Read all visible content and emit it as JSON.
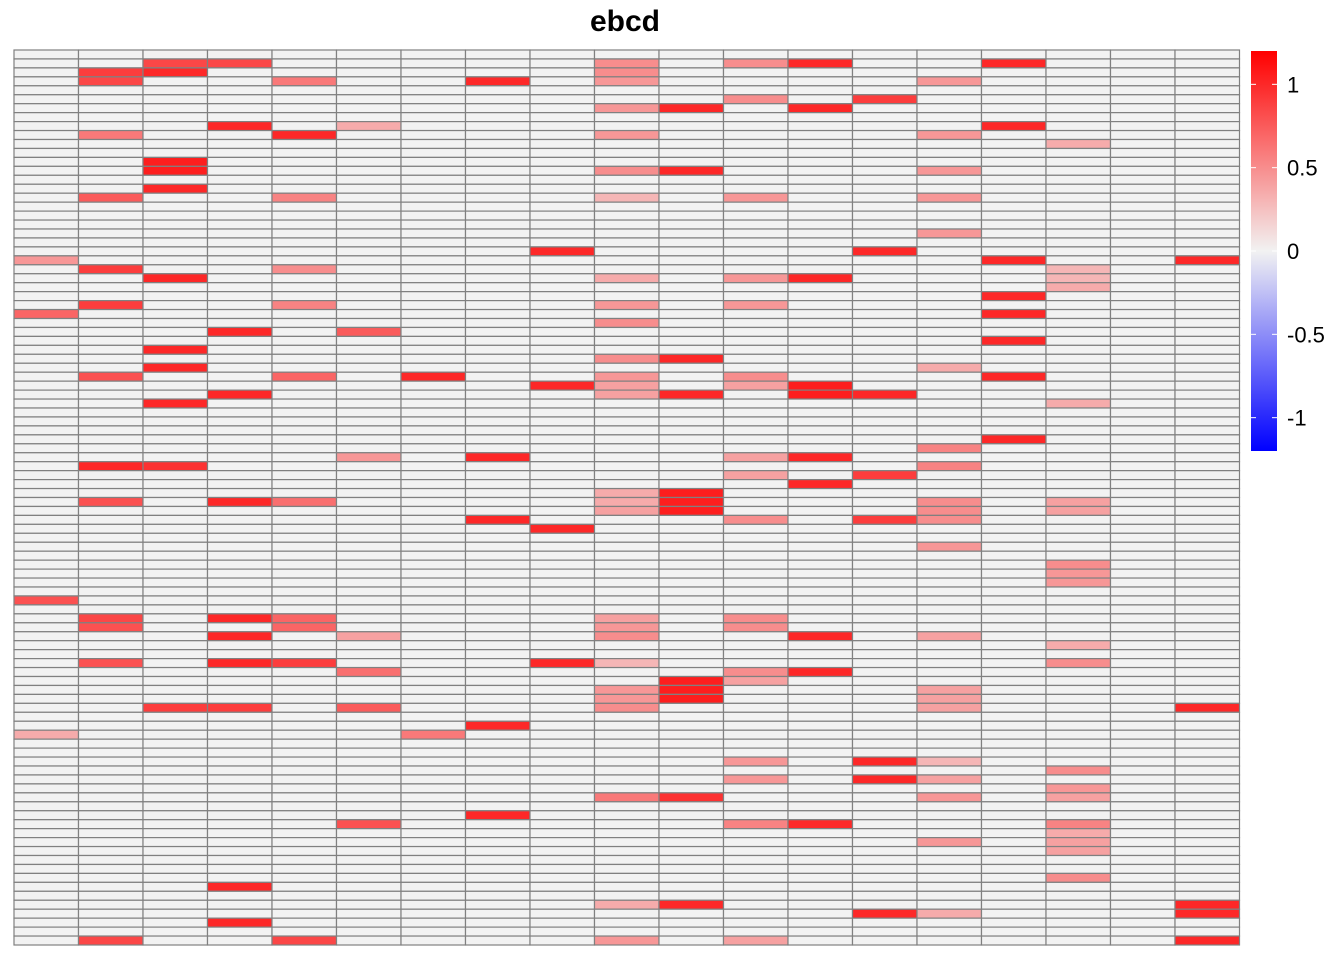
{
  "chart_data": {
    "type": "heatmap",
    "title": "ebcd",
    "n_rows": 100,
    "n_cols": 19,
    "color_scale": {
      "low": "#0000FF",
      "mid": "#F2F2F2",
      "high": "#FF0000",
      "range": [
        -1.2,
        1.2
      ],
      "ticks": [
        1,
        0.5,
        0,
        -0.5,
        -1
      ],
      "tick_labels": [
        "1",
        "0.5",
        "0",
        "-0.5",
        "-1"
      ]
    },
    "cell_border_color": "#808080",
    "cells": [
      [
        1,
        2,
        0.85
      ],
      [
        1,
        3,
        0.85
      ],
      [
        2,
        2,
        1.0
      ],
      [
        23,
        0,
        0.45
      ],
      [
        29,
        0,
        0.7
      ],
      [
        61,
        0,
        0.8
      ],
      [
        76,
        0,
        0.35
      ],
      [
        2,
        1,
        0.9
      ],
      [
        3,
        1,
        0.85
      ],
      [
        9,
        1,
        0.6
      ],
      [
        16,
        1,
        0.75
      ],
      [
        24,
        1,
        0.9
      ],
      [
        28,
        1,
        0.9
      ],
      [
        36,
        1,
        0.8
      ],
      [
        46,
        1,
        1.0
      ],
      [
        50,
        1,
        0.8
      ],
      [
        63,
        1,
        0.85
      ],
      [
        64,
        1,
        0.8
      ],
      [
        68,
        1,
        0.8
      ],
      [
        99,
        1,
        0.85
      ],
      [
        2,
        2,
        1.0
      ],
      [
        12,
        2,
        1.05
      ],
      [
        13,
        2,
        1.05
      ],
      [
        15,
        2,
        1.0
      ],
      [
        25,
        2,
        1.0
      ],
      [
        33,
        2,
        1.0
      ],
      [
        35,
        2,
        1.0
      ],
      [
        39,
        2,
        1.0
      ],
      [
        46,
        2,
        0.95
      ],
      [
        73,
        2,
        0.9
      ],
      [
        8,
        3,
        1.0
      ],
      [
        31,
        3,
        1.0
      ],
      [
        38,
        3,
        1.0
      ],
      [
        50,
        3,
        1.0
      ],
      [
        63,
        3,
        1.0
      ],
      [
        65,
        3,
        1.0
      ],
      [
        68,
        3,
        1.0
      ],
      [
        73,
        3,
        0.9
      ],
      [
        93,
        3,
        1.0
      ],
      [
        97,
        3,
        1.0
      ],
      [
        3,
        4,
        0.6
      ],
      [
        9,
        4,
        1.0
      ],
      [
        16,
        4,
        0.55
      ],
      [
        24,
        4,
        0.5
      ],
      [
        28,
        4,
        0.55
      ],
      [
        36,
        4,
        0.7
      ],
      [
        50,
        4,
        0.65
      ],
      [
        63,
        4,
        0.7
      ],
      [
        64,
        4,
        0.7
      ],
      [
        68,
        4,
        0.9
      ],
      [
        99,
        4,
        0.85
      ],
      [
        8,
        5,
        0.35
      ],
      [
        31,
        5,
        0.75
      ],
      [
        45,
        5,
        0.45
      ],
      [
        65,
        5,
        0.4
      ],
      [
        69,
        5,
        0.65
      ],
      [
        73,
        5,
        0.75
      ],
      [
        86,
        5,
        0.8
      ],
      [
        36,
        6,
        1.0
      ],
      [
        76,
        6,
        0.6
      ],
      [
        3,
        7,
        1.0
      ],
      [
        45,
        7,
        1.0
      ],
      [
        52,
        7,
        1.0
      ],
      [
        75,
        7,
        1.0
      ],
      [
        85,
        7,
        1.0
      ],
      [
        22,
        8,
        1.0
      ],
      [
        37,
        8,
        1.0
      ],
      [
        53,
        8,
        1.0
      ],
      [
        68,
        8,
        1.0
      ],
      [
        1,
        9,
        0.5
      ],
      [
        2,
        9,
        0.5
      ],
      [
        3,
        9,
        0.45
      ],
      [
        6,
        9,
        0.45
      ],
      [
        9,
        9,
        0.45
      ],
      [
        13,
        9,
        0.5
      ],
      [
        16,
        9,
        0.3
      ],
      [
        25,
        9,
        0.35
      ],
      [
        28,
        9,
        0.45
      ],
      [
        30,
        9,
        0.5
      ],
      [
        34,
        9,
        0.5
      ],
      [
        36,
        9,
        0.45
      ],
      [
        37,
        9,
        0.4
      ],
      [
        38,
        9,
        0.4
      ],
      [
        49,
        9,
        0.35
      ],
      [
        50,
        9,
        0.35
      ],
      [
        51,
        9,
        0.4
      ],
      [
        63,
        9,
        0.4
      ],
      [
        64,
        9,
        0.45
      ],
      [
        65,
        9,
        0.5
      ],
      [
        68,
        9,
        0.3
      ],
      [
        71,
        9,
        0.45
      ],
      [
        72,
        9,
        0.45
      ],
      [
        73,
        9,
        0.5
      ],
      [
        83,
        9,
        0.6
      ],
      [
        95,
        9,
        0.35
      ],
      [
        99,
        9,
        0.45
      ],
      [
        6,
        10,
        1.0
      ],
      [
        13,
        10,
        1.0
      ],
      [
        34,
        10,
        1.0
      ],
      [
        38,
        10,
        1.0
      ],
      [
        49,
        10,
        1.05
      ],
      [
        50,
        10,
        1.05
      ],
      [
        51,
        10,
        1.05
      ],
      [
        70,
        10,
        1.05
      ],
      [
        71,
        10,
        1.05
      ],
      [
        72,
        10,
        1.05
      ],
      [
        83,
        10,
        0.95
      ],
      [
        95,
        10,
        1.0
      ],
      [
        1,
        11,
        0.5
      ],
      [
        5,
        11,
        0.5
      ],
      [
        16,
        11,
        0.45
      ],
      [
        25,
        11,
        0.45
      ],
      [
        28,
        11,
        0.45
      ],
      [
        36,
        11,
        0.5
      ],
      [
        37,
        11,
        0.4
      ],
      [
        45,
        11,
        0.4
      ],
      [
        47,
        11,
        0.4
      ],
      [
        52,
        11,
        0.5
      ],
      [
        63,
        11,
        0.5
      ],
      [
        64,
        11,
        0.5
      ],
      [
        69,
        11,
        0.5
      ],
      [
        70,
        11,
        0.4
      ],
      [
        79,
        11,
        0.45
      ],
      [
        81,
        11,
        0.45
      ],
      [
        86,
        11,
        0.55
      ],
      [
        99,
        11,
        0.4
      ],
      [
        1,
        12,
        1.0
      ],
      [
        6,
        12,
        1.0
      ],
      [
        25,
        12,
        1.0
      ],
      [
        37,
        12,
        1.05
      ],
      [
        38,
        12,
        1.05
      ],
      [
        45,
        12,
        1.0
      ],
      [
        48,
        12,
        1.0
      ],
      [
        65,
        12,
        1.0
      ],
      [
        69,
        12,
        1.0
      ],
      [
        86,
        12,
        1.0
      ],
      [
        5,
        13,
        0.9
      ],
      [
        22,
        13,
        1.0
      ],
      [
        38,
        13,
        1.0
      ],
      [
        47,
        13,
        0.9
      ],
      [
        52,
        13,
        0.9
      ],
      [
        79,
        13,
        1.0
      ],
      [
        81,
        13,
        1.0
      ],
      [
        96,
        13,
        1.0
      ],
      [
        3,
        14,
        0.45
      ],
      [
        9,
        14,
        0.45
      ],
      [
        13,
        14,
        0.45
      ],
      [
        16,
        14,
        0.45
      ],
      [
        20,
        14,
        0.45
      ],
      [
        35,
        14,
        0.35
      ],
      [
        44,
        14,
        0.55
      ],
      [
        46,
        14,
        0.55
      ],
      [
        50,
        14,
        0.5
      ],
      [
        51,
        14,
        0.5
      ],
      [
        52,
        14,
        0.5
      ],
      [
        55,
        14,
        0.45
      ],
      [
        65,
        14,
        0.4
      ],
      [
        71,
        14,
        0.4
      ],
      [
        72,
        14,
        0.4
      ],
      [
        73,
        14,
        0.4
      ],
      [
        79,
        14,
        0.3
      ],
      [
        81,
        14,
        0.4
      ],
      [
        83,
        14,
        0.45
      ],
      [
        88,
        14,
        0.45
      ],
      [
        96,
        14,
        0.35
      ],
      [
        1,
        15,
        1.0
      ],
      [
        8,
        15,
        1.0
      ],
      [
        23,
        15,
        1.0
      ],
      [
        27,
        15,
        1.0
      ],
      [
        29,
        15,
        1.0
      ],
      [
        32,
        15,
        1.0
      ],
      [
        36,
        15,
        1.0
      ],
      [
        43,
        15,
        1.0
      ],
      [
        10,
        16,
        0.35
      ],
      [
        24,
        16,
        0.3
      ],
      [
        25,
        16,
        0.3
      ],
      [
        26,
        16,
        0.35
      ],
      [
        39,
        16,
        0.35
      ],
      [
        50,
        16,
        0.4
      ],
      [
        51,
        16,
        0.4
      ],
      [
        57,
        16,
        0.5
      ],
      [
        58,
        16,
        0.45
      ],
      [
        59,
        16,
        0.45
      ],
      [
        66,
        16,
        0.35
      ],
      [
        68,
        16,
        0.5
      ],
      [
        80,
        16,
        0.5
      ],
      [
        82,
        16,
        0.45
      ],
      [
        83,
        16,
        0.4
      ],
      [
        86,
        16,
        0.55
      ],
      [
        87,
        16,
        0.35
      ],
      [
        88,
        16,
        0.4
      ],
      [
        89,
        16,
        0.4
      ],
      [
        92,
        16,
        0.5
      ],
      [
        99,
        18,
        1.0
      ],
      [
        23,
        18,
        1.0
      ],
      [
        73,
        18,
        1.0
      ],
      [
        95,
        18,
        1.0
      ],
      [
        96,
        18,
        1.0
      ]
    ]
  }
}
